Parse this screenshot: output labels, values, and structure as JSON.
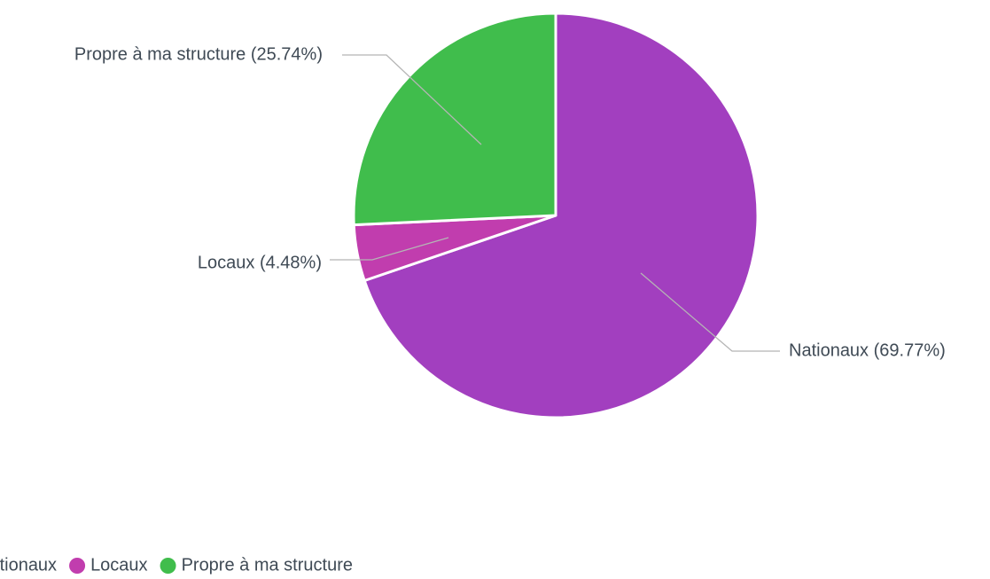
{
  "chart_data": {
    "type": "pie",
    "slices": [
      {
        "label": "Nationaux",
        "value": 69.77,
        "color": "#a23fbf",
        "display": "Nationaux (69.77%)"
      },
      {
        "label": "Locaux",
        "value": 4.48,
        "color": "#c13dae",
        "display": "Locaux (4.48%)"
      },
      {
        "label": "Propre à ma structure",
        "value": 25.74,
        "color": "#40bd4c",
        "display": "Propre à ma structure (25.74%)"
      }
    ],
    "legend": {
      "position": "bottom-left",
      "items": [
        "Nationaux",
        "Locaux",
        "Propre à ma structure"
      ]
    }
  }
}
